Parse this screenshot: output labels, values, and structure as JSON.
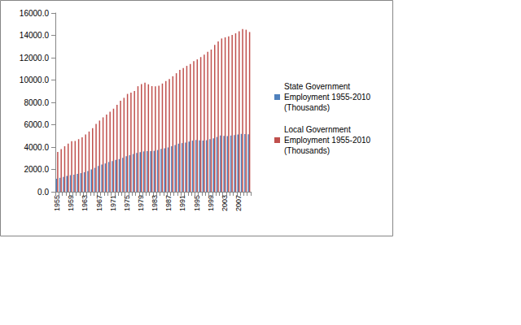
{
  "chart_data": {
    "type": "bar",
    "categories": [
      "1955",
      null,
      null,
      null,
      "1959",
      null,
      null,
      null,
      "1963",
      null,
      null,
      null,
      "1967",
      null,
      null,
      null,
      "1971",
      null,
      null,
      null,
      "1975",
      null,
      null,
      null,
      "1979",
      null,
      null,
      null,
      "1983",
      null,
      null,
      null,
      "1987",
      null,
      null,
      null,
      "1991",
      null,
      null,
      null,
      "1995",
      null,
      null,
      null,
      "1999",
      null,
      null,
      null,
      "2003",
      null,
      null,
      null,
      "2007",
      null,
      null,
      null
    ],
    "series": [
      {
        "name": "State Government Employment 1955-2010 (Thousands)",
        "color": "#4f81bd",
        "values": [
          1168,
          1250,
          1328,
          1415,
          1484,
          1536,
          1607,
          1668,
          1747,
          1856,
          1996,
          2141,
          2302,
          2442,
          2533,
          2664,
          2747,
          2859,
          2923,
          3039,
          3179,
          3273,
          3377,
          3474,
          3541,
          3610,
          3640,
          3640,
          3662,
          3734,
          3832,
          3893,
          3967,
          4076,
          4182,
          4305,
          4355,
          4408,
          4488,
          4576,
          4635,
          4606,
          4582,
          4612,
          4709,
          4786,
          4905,
          5029,
          5002,
          4982,
          5032,
          5075,
          5122,
          5177,
          5169,
          5137
        ]
      },
      {
        "name": "Local Government Employment 1955-2010 (Thousands)",
        "color": "#c0504d",
        "values": [
          3558,
          3819,
          4071,
          4307,
          4527,
          4547,
          4708,
          4881,
          5121,
          5392,
          5700,
          6080,
          6371,
          6660,
          6904,
          7158,
          7437,
          7790,
          8146,
          8407,
          8758,
          8865,
          9023,
          9446,
          9633,
          9765,
          9619,
          9458,
          9434,
          9482,
          9687,
          9901,
          10100,
          10339,
          10609,
          10914,
          11081,
          11267,
          11438,
          11682,
          11849,
          12056,
          12276,
          12525,
          12729,
          13139,
          13449,
          13718,
          13822,
          13909,
          14041,
          14180,
          14362,
          14557,
          14503,
          14297
        ]
      }
    ],
    "ylim": [
      0,
      16000
    ],
    "yticks": [
      {
        "value": 0,
        "label": "0.0"
      },
      {
        "value": 2000,
        "label": "2000.0"
      },
      {
        "value": 4000,
        "label": "4000.0"
      },
      {
        "value": 6000,
        "label": "6000.0"
      },
      {
        "value": 8000,
        "label": "8000.0"
      },
      {
        "value": 10000,
        "label": "10000.0"
      },
      {
        "value": 12000,
        "label": "12000.0"
      },
      {
        "value": 14000,
        "label": "14000.0"
      },
      {
        "value": 16000,
        "label": "16000.0"
      }
    ],
    "grid": false,
    "legend": "right"
  }
}
